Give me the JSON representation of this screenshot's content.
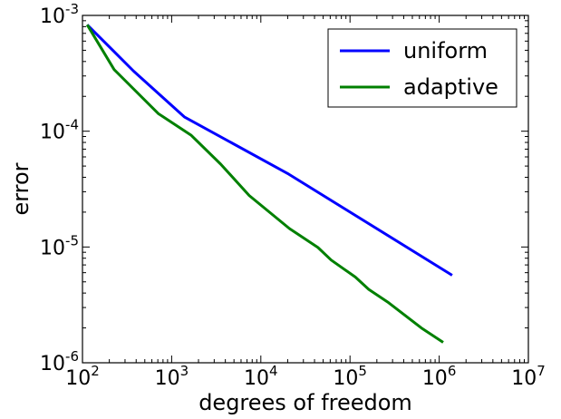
{
  "chart_data": {
    "type": "line",
    "title": "",
    "xlabel": "degrees of freedom",
    "ylabel": "error",
    "xscale": "log",
    "yscale": "log",
    "xlim": [
      100,
      10000000
    ],
    "ylim": [
      1e-06,
      0.001
    ],
    "grid": false,
    "legend_position": "top-right",
    "xticks": [
      {
        "value": 100,
        "base": "10",
        "exp": "2"
      },
      {
        "value": 1000,
        "base": "10",
        "exp": "3"
      },
      {
        "value": 10000,
        "base": "10",
        "exp": "4"
      },
      {
        "value": 100000,
        "base": "10",
        "exp": "5"
      },
      {
        "value": 1000000,
        "base": "10",
        "exp": "6"
      },
      {
        "value": 10000000,
        "base": "10",
        "exp": "7"
      }
    ],
    "yticks": [
      {
        "value": 1e-06,
        "base": "10",
        "exp": "-6"
      },
      {
        "value": 1e-05,
        "base": "10",
        "exp": "-5"
      },
      {
        "value": 0.0001,
        "base": "10",
        "exp": "-4"
      },
      {
        "value": 0.001,
        "base": "10",
        "exp": "-3"
      }
    ],
    "series": [
      {
        "name": "uniform",
        "color": "#0000ff",
        "x": [
          113,
          375,
          1389,
          20600,
          1398000
        ],
        "y": [
          0.00083,
          0.00033,
          0.000133,
          4.25e-05,
          5.7e-06
        ]
      },
      {
        "name": "adaptive",
        "color": "#008000",
        "x": [
          113,
          227,
          708,
          1660,
          3548,
          7413,
          21010,
          43650,
          61660,
          114800,
          162200,
          271000,
          630000,
          1109000
        ],
        "y": [
          0.00083,
          0.00034,
          0.000142,
          9.2e-05,
          5.19e-05,
          2.78e-05,
          1.44e-05,
          9.9e-06,
          7.7e-06,
          5.5e-06,
          4.3e-06,
          3.3e-06,
          2e-06,
          1.5e-06
        ]
      }
    ]
  }
}
